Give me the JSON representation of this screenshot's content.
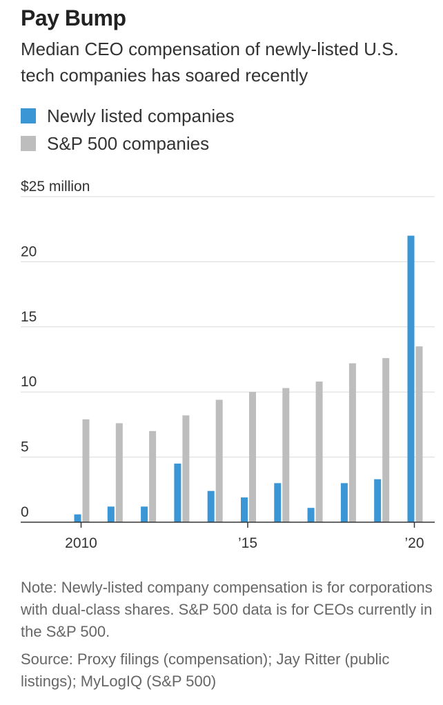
{
  "header": {
    "title": "Pay Bump",
    "subtitle": "Median CEO compensation of newly-listed U.S. tech companies has soared recently"
  },
  "colors": {
    "newly_listed": "#3b96d6",
    "sp500": "#bdbdbd",
    "grid": "#d9d9d9",
    "axis": "#333333"
  },
  "footer": {
    "note": "Note: Newly-listed company compensation is for corporations with dual-class shares. S&P 500 data is for CEOs currently in the S&P 500.",
    "source": "Source: Proxy filings (compensation); Jay Ritter (public listings); MyLogIQ (S&P 500)"
  },
  "chart_data": {
    "type": "bar",
    "title": "Pay Bump",
    "subtitle": "Median CEO compensation of newly-listed U.S. tech companies has soared recently",
    "x": [
      2010,
      2011,
      2012,
      2013,
      2014,
      2015,
      2016,
      2017,
      2018,
      2019,
      2020
    ],
    "x_tick_labels": [
      {
        "x": 2010,
        "label": "2010"
      },
      {
        "x": 2015,
        "label": "’15"
      },
      {
        "x": 2020,
        "label": "’20"
      }
    ],
    "y_ticks": [
      {
        "value": 0,
        "label": "0"
      },
      {
        "value": 5,
        "label": "5"
      },
      {
        "value": 10,
        "label": "10"
      },
      {
        "value": 15,
        "label": "15"
      },
      {
        "value": 20,
        "label": "20"
      },
      {
        "value": 25,
        "label": "$25 million"
      }
    ],
    "ylim": [
      0,
      25
    ],
    "grid": true,
    "legend": "top-left",
    "series": [
      {
        "name": "Newly listed companies",
        "values": [
          0.6,
          1.2,
          1.2,
          4.5,
          2.4,
          1.9,
          3.0,
          1.1,
          3.0,
          3.3,
          22.0
        ]
      },
      {
        "name": "S&P 500 companies",
        "values": [
          7.9,
          7.6,
          7.0,
          8.2,
          9.4,
          10.0,
          10.3,
          10.8,
          12.2,
          12.6,
          13.5
        ]
      }
    ]
  }
}
